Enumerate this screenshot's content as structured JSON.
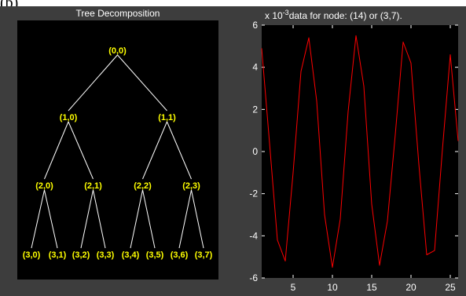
{
  "corner_label": "(b)",
  "tree_panel": {
    "title": "Tree Decomposition",
    "colors": {
      "background": "#000000",
      "edges": "#ffffff",
      "labels": "#ffff00"
    },
    "nodes": [
      {
        "id": "0-0",
        "label": "(0,0)",
        "depth": 0,
        "index": 0
      },
      {
        "id": "1-0",
        "label": "(1,0)",
        "depth": 1,
        "index": 0
      },
      {
        "id": "1-1",
        "label": "(1,1)",
        "depth": 1,
        "index": 1
      },
      {
        "id": "2-0",
        "label": "(2,0)",
        "depth": 2,
        "index": 0
      },
      {
        "id": "2-1",
        "label": "(2,1)",
        "depth": 2,
        "index": 1
      },
      {
        "id": "2-2",
        "label": "(2,2)",
        "depth": 2,
        "index": 2
      },
      {
        "id": "2-3",
        "label": "(2,3)",
        "depth": 2,
        "index": 3
      },
      {
        "id": "3-0",
        "label": "(3,0)",
        "depth": 3,
        "index": 0
      },
      {
        "id": "3-1",
        "label": "(3,1)",
        "depth": 3,
        "index": 1
      },
      {
        "id": "3-2",
        "label": "(3,2)",
        "depth": 3,
        "index": 2
      },
      {
        "id": "3-3",
        "label": "(3,3)",
        "depth": 3,
        "index": 3
      },
      {
        "id": "3-4",
        "label": "(3,4)",
        "depth": 3,
        "index": 4
      },
      {
        "id": "3-5",
        "label": "(3,5)",
        "depth": 3,
        "index": 5
      },
      {
        "id": "3-6",
        "label": "(3,6)",
        "depth": 3,
        "index": 6
      },
      {
        "id": "3-7",
        "label": "(3,7)",
        "depth": 3,
        "index": 7
      }
    ]
  },
  "chart_data": {
    "type": "line",
    "title": "data for node: (14) or (3,7).",
    "exponent_label": "x 10",
    "exponent_power": "-3",
    "xlabel": "",
    "ylabel": "",
    "xlim": [
      1,
      26
    ],
    "ylim": [
      -6,
      6
    ],
    "xticks": [
      5,
      10,
      15,
      20,
      25
    ],
    "yticks": [
      -6,
      -4,
      -2,
      0,
      2,
      4,
      6
    ],
    "grid": false,
    "colors": {
      "background": "#000000",
      "line": "#ff0000",
      "text": "#ffffff"
    },
    "series": [
      {
        "x": [
          1,
          2,
          3,
          4,
          5,
          6,
          7,
          8,
          9,
          10,
          11,
          12,
          13,
          14,
          15,
          16,
          17,
          18,
          19,
          20,
          21,
          22,
          23,
          24,
          25,
          26
        ],
        "y": [
          4.9,
          0.4,
          -4.2,
          -5.2,
          -1.0,
          3.8,
          5.4,
          2.4,
          -3.0,
          -5.5,
          -3.2,
          1.9,
          5.5,
          3.1,
          -2.5,
          -5.4,
          -3.3,
          0.8,
          5.2,
          4.2,
          -0.6,
          -4.9,
          -4.7,
          0.1,
          4.6,
          0.5
        ]
      }
    ]
  }
}
